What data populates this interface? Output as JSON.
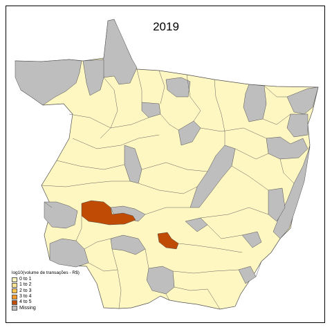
{
  "map": {
    "title": "2019",
    "legend": {
      "title": "log10(volume de transações - R$)",
      "items": [
        {
          "label": "0 to 1",
          "color": "#FFF7C2"
        },
        {
          "label": "1 to 2",
          "color": "#FEE391"
        },
        {
          "label": "2 to 3",
          "color": "#FEC44F"
        },
        {
          "label": "3 to 4",
          "color": "#FB9A29"
        },
        {
          "label": "4 to 5",
          "color": "#BF4B05"
        },
        {
          "label": "Missing",
          "color": "#BEBEBE"
        }
      ]
    }
  },
  "colors": {
    "base_fill": "#FFF7C2",
    "missing_fill": "#BEBEBE",
    "highlight_fill": "#BF4B05",
    "border": "#4D4D4D"
  }
}
